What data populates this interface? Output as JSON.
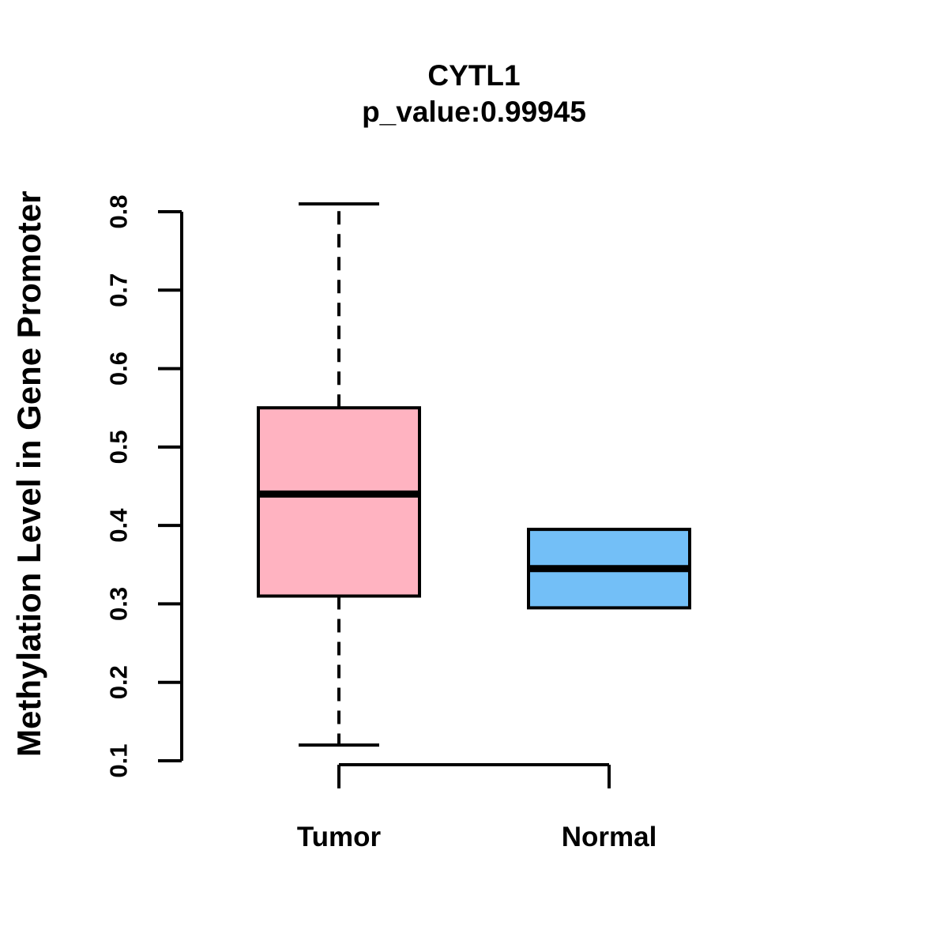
{
  "chart_data": {
    "type": "boxplot",
    "title": "CYTL1",
    "subtitle": "p_value:0.99945",
    "ylabel": "Methylation Level in Gene Promoter",
    "xlabel": "",
    "ylim": [
      0.1,
      0.8
    ],
    "yticks": [
      0.1,
      0.2,
      0.3,
      0.4,
      0.5,
      0.6,
      0.7,
      0.8
    ],
    "grid": false,
    "legend": "none",
    "groups": [
      {
        "label": "Tumor",
        "color": "#FFB3C1",
        "lower_whisker": 0.12,
        "q1": 0.31,
        "median": 0.44,
        "q3": 0.55,
        "upper_whisker": 0.81,
        "outliers": []
      },
      {
        "label": "Normal",
        "color": "#73BFF7",
        "lower_whisker": 0.295,
        "q1": 0.295,
        "median": 0.345,
        "q3": 0.395,
        "upper_whisker": 0.395,
        "outliers": []
      }
    ],
    "styles": {
      "line_color": "#000000",
      "text_color": "#000000",
      "background": "#FFFFFF",
      "whisker_style": "dashed"
    }
  }
}
